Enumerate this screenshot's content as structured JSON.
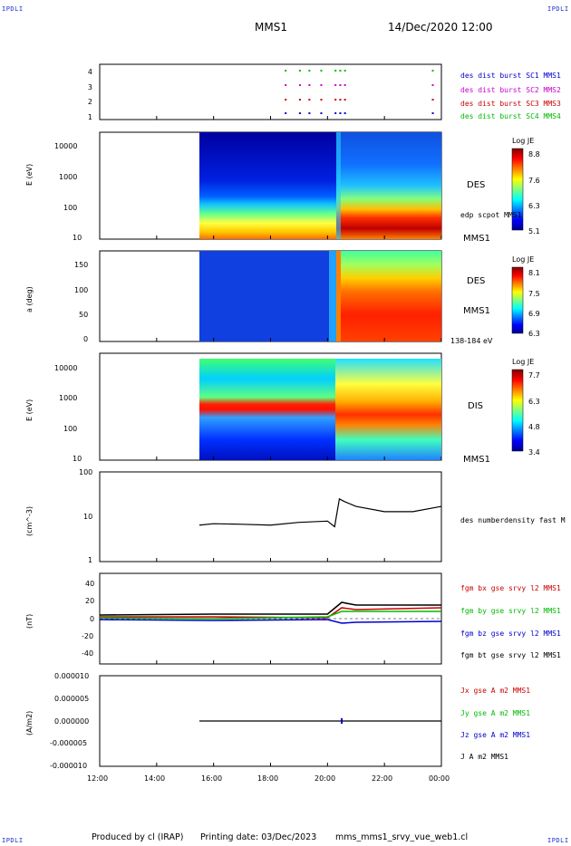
{
  "corner_tags": {
    "tl": "IPDLI",
    "tr": "IPDLI",
    "bl": "IPDLI",
    "br": "IPDLI"
  },
  "header": {
    "title": "MMS1",
    "datetime": "14/Dec/2020 12:00"
  },
  "footer": {
    "produced_by": "Produced by cl (IRAP)",
    "printing_date": "Printing date: 03/Dec/2023",
    "file": "mms_mms1_srvy_vue_web1.cl"
  },
  "x_axis": {
    "ticks": [
      "12:00",
      "14:00",
      "16:00",
      "18:00",
      "20:00",
      "22:00",
      "00:00"
    ]
  },
  "colors": {
    "mms1": "#0000cc",
    "mms2": "#cc00cc",
    "mms3": "#cc0000",
    "mms4": "#00bb00",
    "black": "#000000"
  },
  "panels": {
    "burst": {
      "yticks": [
        "4",
        "3",
        "2",
        "1"
      ],
      "legend": [
        "des dist burst SC1 MMS1",
        "des dist burst SC2 MMS2",
        "des dist burst SC3 MMS3",
        "des dist burst SC4 MMS4"
      ]
    },
    "des_energy": {
      "ylabel": "E (eV)",
      "yticks": [
        "10000",
        "1000",
        "100",
        "10"
      ],
      "label": "DES",
      "label2": "edp scpot MMS1",
      "label3": "MMS1",
      "colorbar": {
        "title": "Log JE",
        "ticks": [
          "8.8",
          "7.6",
          "6.3",
          "5.1"
        ]
      }
    },
    "des_pitch": {
      "ylabel": "a (deg)",
      "yticks": [
        "150",
        "100",
        "50",
        "0"
      ],
      "label": "DES",
      "label2": "MMS1",
      "label3": "138-184 eV",
      "colorbar": {
        "title": "Log JE",
        "ticks": [
          "8.1",
          "7.5",
          "6.9",
          "6.3"
        ]
      }
    },
    "dis_energy": {
      "ylabel": "E (eV)",
      "yticks": [
        "10000",
        "1000",
        "100",
        "10"
      ],
      "label": "DIS",
      "label2": "MMS1",
      "colorbar": {
        "title": "Log JE",
        "ticks": [
          "7.7",
          "6.3",
          "4.8",
          "3.4"
        ]
      }
    },
    "density": {
      "ylabel": "(cm^-3)",
      "yticks": [
        "100",
        "10",
        "1"
      ],
      "legend": "des numberdensity fast M"
    },
    "bfield": {
      "ylabel": "(nT)",
      "yticks": [
        "40",
        "20",
        "0",
        "-20",
        "-40"
      ],
      "legend": [
        "fgm bx gse srvy l2 MMS1",
        "fgm by gse srvy l2 MMS1",
        "fgm bz gse srvy l2 MMS1",
        "fgm bt gse srvy l2 MMS1"
      ]
    },
    "current": {
      "ylabel": "(A/m2)",
      "yticks": [
        "0.000010",
        "0.000005",
        "0.000000",
        "-0.000005",
        "-0.000010"
      ],
      "legend": [
        "Jx gse A m2 MMS1",
        "Jy gse A m2 MMS1",
        "Jz gse A m2 MMS1",
        "J A m2 MMS1"
      ]
    }
  },
  "chart_data": {
    "type": "line",
    "x_range": [
      "12:00",
      "00:00"
    ],
    "density_series": {
      "name": "des numberdensity fast M",
      "x": [
        "15:30",
        "16:00",
        "17:00",
        "18:00",
        "19:00",
        "20:00",
        "20:15",
        "20:25",
        "20:35",
        "21:00",
        "22:00",
        "23:00",
        "00:00"
      ],
      "y": [
        6.5,
        7,
        6.8,
        6.5,
        7.5,
        8,
        6,
        25,
        22,
        17,
        13,
        13,
        17
      ],
      "ylim": [
        1,
        100
      ],
      "log": true
    },
    "bfield_series": [
      {
        "name": "fgm bx gse srvy l2 MMS1",
        "x": [
          "12:00",
          "16:00",
          "20:00",
          "20:30",
          "21:00",
          "00:00"
        ],
        "y": [
          2,
          2,
          1,
          12,
          10,
          12
        ]
      },
      {
        "name": "fgm by gse srvy l2 MMS1",
        "x": [
          "12:00",
          "16:00",
          "20:00",
          "20:30",
          "21:00",
          "00:00"
        ],
        "y": [
          1,
          0,
          2,
          8,
          8,
          8
        ]
      },
      {
        "name": "fgm bz gse srvy l2 MMS1",
        "x": [
          "12:00",
          "16:00",
          "20:00",
          "20:30",
          "21:00",
          "00:00"
        ],
        "y": [
          -1,
          -2,
          -1,
          -5,
          -4,
          -3
        ]
      },
      {
        "name": "fgm bt gse srvy l2 MMS1",
        "x": [
          "12:00",
          "16:00",
          "20:00",
          "20:30",
          "21:00",
          "00:00"
        ],
        "y": [
          4,
          5,
          5,
          18,
          15,
          15
        ]
      }
    ],
    "bfield_ylim": [
      -50,
      50
    ],
    "current_ylim": [
      -1e-05,
      1e-05
    ]
  }
}
